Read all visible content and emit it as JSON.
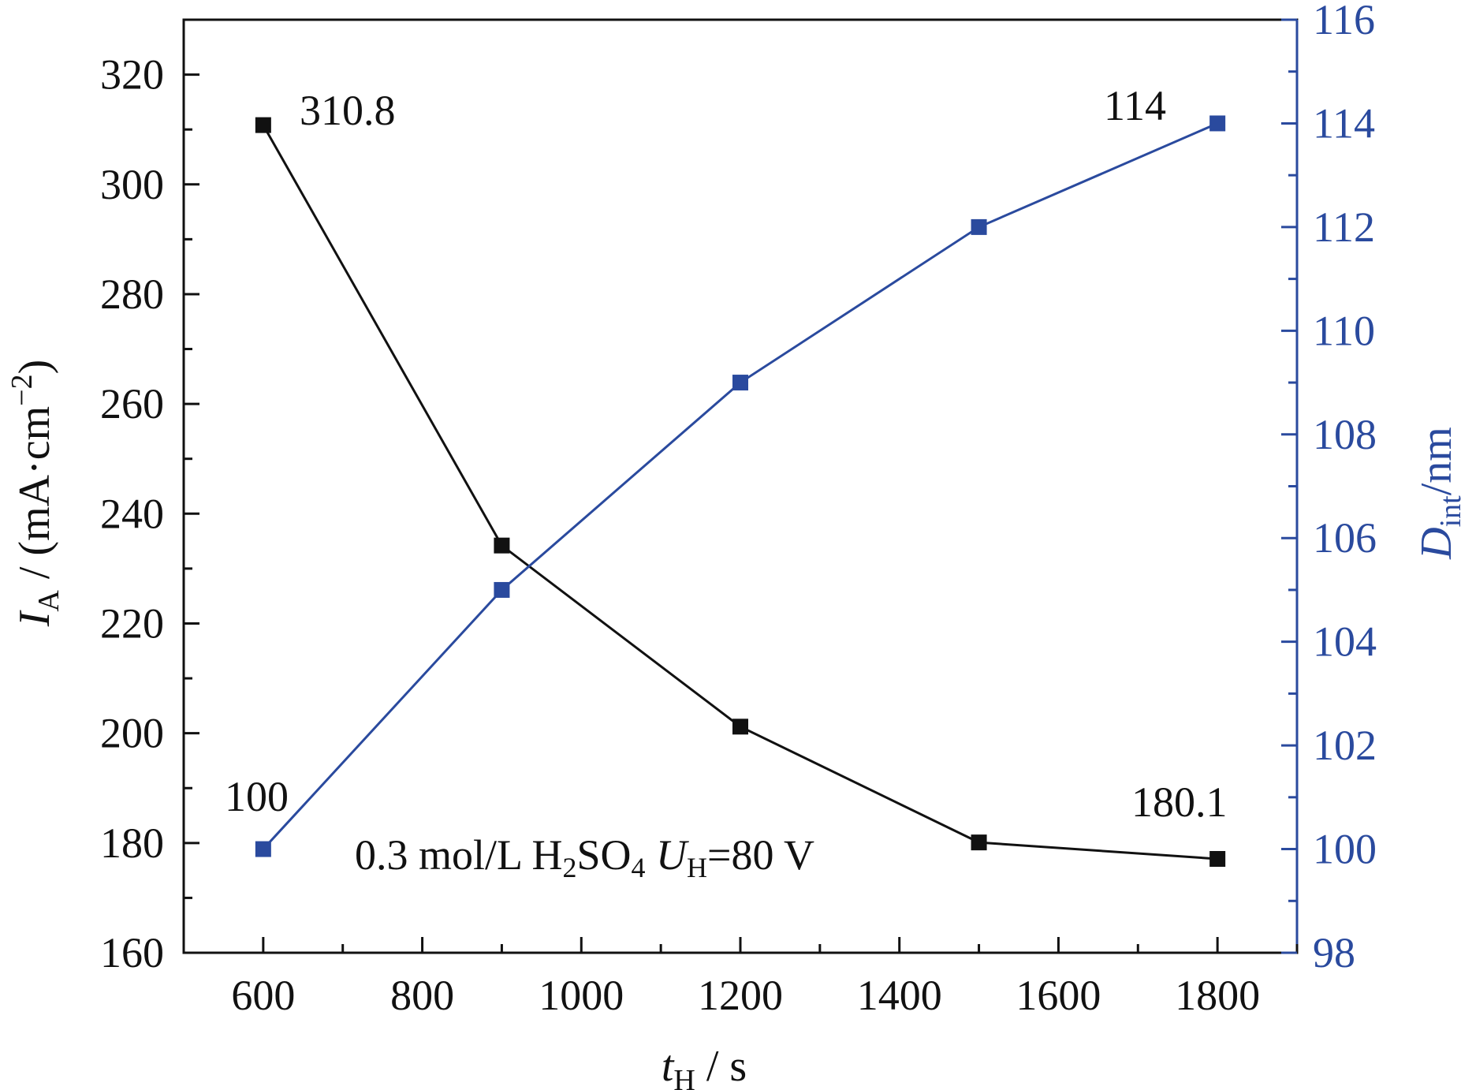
{
  "colors": {
    "left": "#111111",
    "right": "#2a4a9e"
  },
  "chart_data": {
    "type": "line",
    "x": [
      600,
      900,
      1200,
      1500,
      1800
    ],
    "xlim": [
      500,
      1900
    ],
    "xticks": [
      600,
      800,
      1000,
      1200,
      1400,
      1600,
      1800
    ],
    "xlabel": {
      "main": "t",
      "sub": "H",
      "rest": " / s"
    },
    "y_left": {
      "lim": [
        160,
        330
      ],
      "ticks": [
        160,
        180,
        200,
        220,
        240,
        260,
        280,
        300,
        320
      ],
      "label": {
        "main": "I",
        "sub": "A",
        "rest": " / (mA·cm",
        "sup": "−2",
        "end": ")"
      }
    },
    "y_right": {
      "lim": [
        98,
        116
      ],
      "ticks": [
        98,
        100,
        102,
        104,
        106,
        108,
        110,
        112,
        114,
        116
      ],
      "label": {
        "main": "D",
        "sub": "int",
        "rest": "/nm"
      }
    },
    "series": [
      {
        "axis": "left",
        "values": [
          310.8,
          234.2,
          201.2,
          180.1,
          177.1
        ]
      },
      {
        "axis": "right",
        "values": [
          100,
          105,
          109,
          112,
          114
        ]
      }
    ],
    "annotations": {
      "a1": "310.8",
      "a2": "114",
      "a3": "100",
      "a4": "180.1"
    },
    "condition": {
      "t1": "0.3 mol/L H",
      "s1": "2",
      "t2": "SO",
      "s2": "4",
      "t3": " ",
      "u": "U",
      "s3": "H",
      "t4": "=80 V"
    },
    "grid": false
  }
}
